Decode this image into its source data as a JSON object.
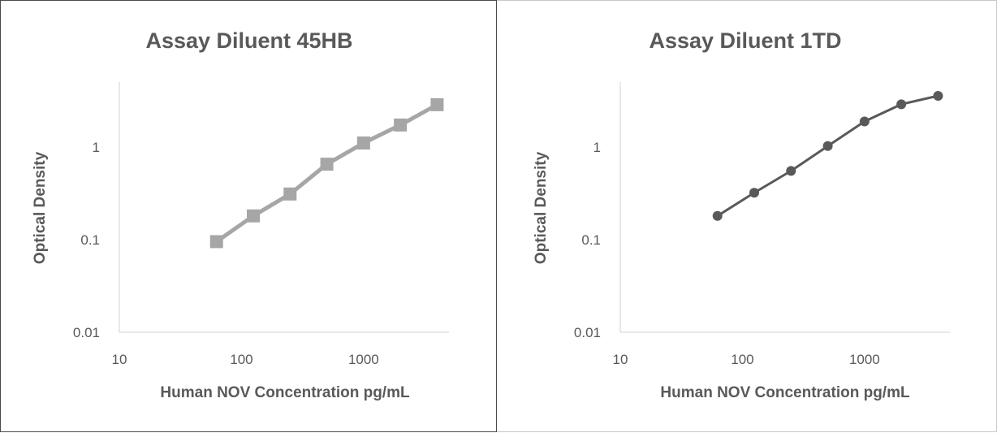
{
  "chart_data": [
    {
      "type": "line",
      "title": "Assay Diluent 45HB",
      "xlabel": "Human NOV Concentration pg/mL",
      "ylabel": "Optical Density",
      "x_scale": "log",
      "y_scale": "log",
      "xlim": [
        10,
        5000
      ],
      "ylim": [
        0.01,
        5
      ],
      "x_ticks": [
        "10",
        "100",
        "1000"
      ],
      "y_ticks": [
        "0.01",
        "0.1",
        "1"
      ],
      "grid": false,
      "legend": "none",
      "marker": "square",
      "color": "#a6a6a6",
      "series": [
        {
          "x": [
            62.5,
            125,
            250,
            500,
            1000,
            2000,
            4000
          ],
          "y": [
            0.095,
            0.18,
            0.31,
            0.65,
            1.1,
            1.72,
            2.85
          ]
        }
      ]
    },
    {
      "type": "line",
      "title": "Assay Diluent 1TD",
      "xlabel": "Human NOV Concentration pg/mL",
      "ylabel": "Optical Density",
      "x_scale": "log",
      "y_scale": "log",
      "xlim": [
        10,
        5000
      ],
      "ylim": [
        0.01,
        5
      ],
      "x_ticks": [
        "10",
        "100",
        "1000"
      ],
      "y_ticks": [
        "0.01",
        "0.1",
        "1"
      ],
      "grid": false,
      "legend": "none",
      "marker": "circle",
      "color": "#595959",
      "series": [
        {
          "x": [
            62.5,
            125,
            250,
            500,
            1000,
            2000,
            4000
          ],
          "y": [
            0.18,
            0.32,
            0.55,
            1.02,
            1.88,
            2.88,
            3.55
          ]
        }
      ]
    }
  ]
}
